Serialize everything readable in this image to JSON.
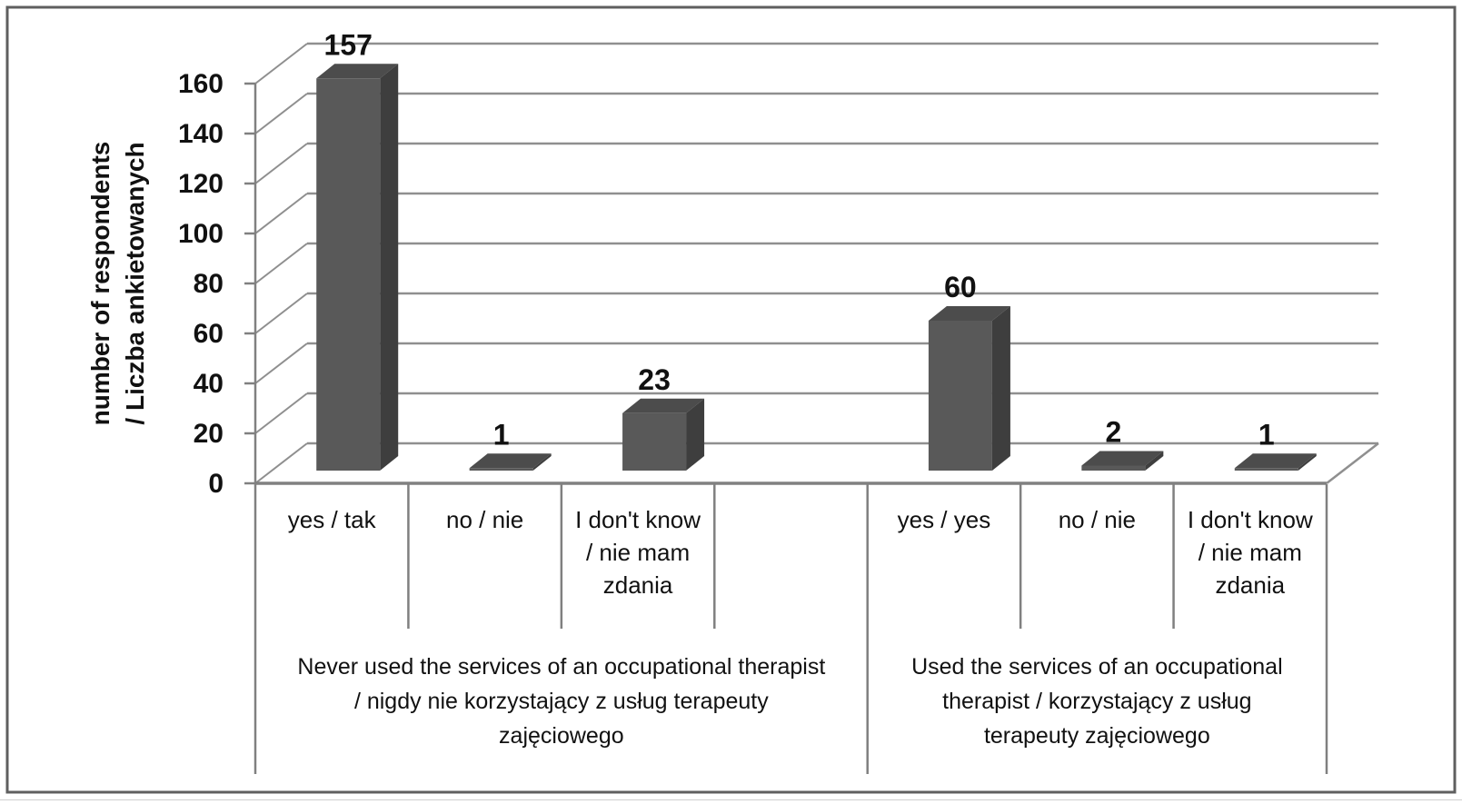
{
  "figure": {
    "background": "#ffffff",
    "border_color": "#5f5f5f"
  },
  "chart_data": {
    "type": "bar",
    "style": "3d-column",
    "title": "",
    "xlabel": "",
    "ylabel": "number of respondents / Liczba ankietowanych",
    "ylabel_lines": [
      "number of respondents",
      "/ Liczba ankietowanych"
    ],
    "ylim": [
      0,
      160
    ],
    "ytick_step": 20,
    "yticks": [
      0,
      20,
      40,
      60,
      80,
      100,
      120,
      140,
      160
    ],
    "grid": true,
    "legend": false,
    "groups": [
      {
        "label": "Never used the services of an occupational therapist / nigdy nie korzystający z usług terapeuty zajęciowego",
        "label_lines": [
          "Never used the services of an occupational therapist",
          "/ nigdy nie korzystający z usług terapeuty",
          "zajęciowego"
        ],
        "categories": [
          "yes / tak",
          "no / nie",
          "I don't know / nie mam zdania"
        ],
        "values": [
          157,
          1,
          23
        ]
      },
      {
        "label": "Used the services of an occupational therapist / korzystający z usług terapeuty zajęciowego",
        "label_lines": [
          "Used the services of an occupational",
          "therapist / korzystający z usług",
          "terapeuty zajęciowego"
        ],
        "categories": [
          "yes / yes",
          "no / nie",
          "I don't know / nie mam zdania"
        ],
        "values": [
          60,
          2,
          1
        ]
      }
    ],
    "cells": [
      {
        "lines": [
          "yes / tak"
        ],
        "value": 157
      },
      {
        "lines": [
          "no / nie"
        ],
        "value": 1
      },
      {
        "lines": [
          "I don't know",
          "/ nie mam",
          "zdania"
        ],
        "value": 23
      },
      {
        "lines": [],
        "value": null
      },
      {
        "lines": [
          "yes / yes"
        ],
        "value": 60
      },
      {
        "lines": [
          "no / nie"
        ],
        "value": 2
      },
      {
        "lines": [
          "I don't know",
          "/ nie mam",
          "zdania"
        ],
        "value": 1
      }
    ],
    "data_labels": [
      "157",
      "1",
      "23",
      "60",
      "2",
      "1"
    ],
    "colors": {
      "bar_front": "#595959",
      "bar_top": "#4c4c4c",
      "bar_side": "#3e3e3e",
      "gridline": "#8f8f8f",
      "axis": "#808080",
      "text": "#111111"
    }
  }
}
